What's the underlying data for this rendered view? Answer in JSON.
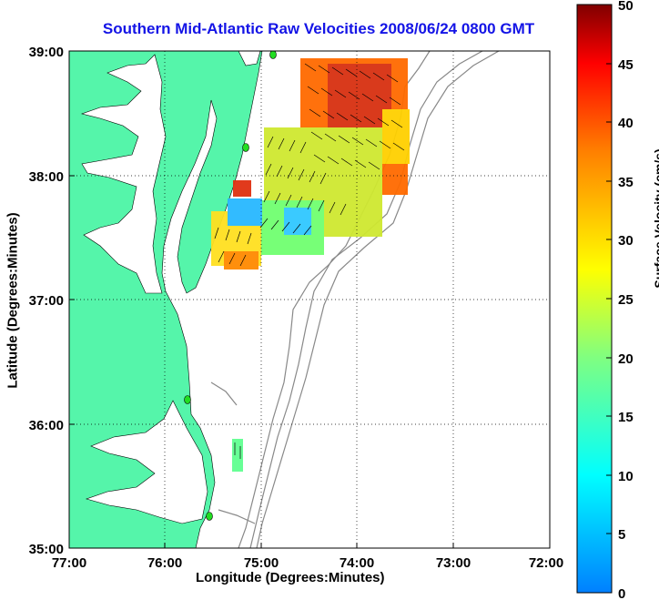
{
  "title": "Southern Mid-Atlantic Raw Velocities 2008/06/24 0800 GMT",
  "xlabel": "Longitude (Degrees:Minutes)",
  "ylabel": "Latitude (Degrees:Minutes)",
  "colorbar": {
    "label": "Surface Velocity (cm/s)",
    "min": 0,
    "max": 50,
    "ticks": [
      "0",
      "5",
      "10",
      "15",
      "20",
      "25",
      "30",
      "35",
      "40",
      "45",
      "50"
    ]
  },
  "x_ticks": [
    "77:00",
    "76:00",
    "75:00",
    "74:00",
    "73:00",
    "72:00"
  ],
  "y_ticks": [
    "39:00",
    "38:00",
    "37:00",
    "36:00",
    "35:00"
  ],
  "map": {
    "lon_range": [
      -77,
      -72
    ],
    "lat_range": [
      35,
      39
    ],
    "land_color": "#55f5aa",
    "water_color": "#ffffff",
    "contour_color": "#888888",
    "station_color": "#22dd22"
  }
}
